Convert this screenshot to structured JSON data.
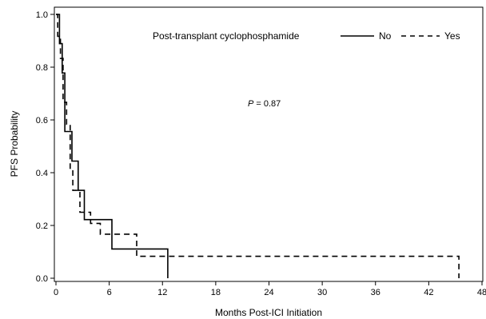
{
  "chart_data": {
    "type": "line",
    "subtype": "kaplan-meier-step",
    "xlabel": "Months Post-ICI Initiation",
    "ylabel": "PFS Probability",
    "xlim": [
      0,
      48
    ],
    "ylim": [
      0,
      1.0
    ],
    "x_ticks": [
      0,
      6,
      12,
      18,
      24,
      30,
      36,
      42,
      48
    ],
    "y_ticks": [
      0.0,
      0.2,
      0.4,
      0.6,
      0.8,
      1.0
    ],
    "x_tick_labels": [
      "0",
      "6",
      "12",
      "18",
      "24",
      "30",
      "36",
      "42",
      "48"
    ],
    "y_tick_labels": [
      "0.0",
      "0.2",
      "0.4",
      "0.6",
      "0.8",
      "1.0"
    ],
    "grid": false,
    "legend": {
      "title": "Post-transplant cyclophosphamide",
      "placement": "top-right"
    },
    "annotation": {
      "p_label": "P",
      "p_value_text": " = 0.87",
      "x": 24,
      "y": 0.66
    },
    "series": [
      {
        "name": "No",
        "style": "solid",
        "x": [
          0,
          0.4,
          0.4,
          0.7,
          0.7,
          1.0,
          1.0,
          1.8,
          1.8,
          2.5,
          2.5,
          3.2,
          3.2,
          6.3,
          6.3,
          12.6,
          12.6
        ],
        "y": [
          1.0,
          1.0,
          0.889,
          0.889,
          0.778,
          0.778,
          0.556,
          0.556,
          0.444,
          0.444,
          0.333,
          0.333,
          0.222,
          0.222,
          0.111,
          0.111,
          0.0
        ]
      },
      {
        "name": "Yes",
        "style": "dashed",
        "x": [
          0,
          0.2,
          0.2,
          0.5,
          0.5,
          0.8,
          0.8,
          1.2,
          1.2,
          1.6,
          1.6,
          1.9,
          1.9,
          2.7,
          2.7,
          3.9,
          3.9,
          5.0,
          5.0,
          9.1,
          9.1,
          45.4,
          45.4
        ],
        "y": [
          1.0,
          1.0,
          0.917,
          0.917,
          0.833,
          0.833,
          0.667,
          0.667,
          0.583,
          0.583,
          0.417,
          0.417,
          0.333,
          0.333,
          0.25,
          0.25,
          0.208,
          0.208,
          0.167,
          0.167,
          0.083,
          0.083,
          0.0
        ]
      }
    ]
  }
}
